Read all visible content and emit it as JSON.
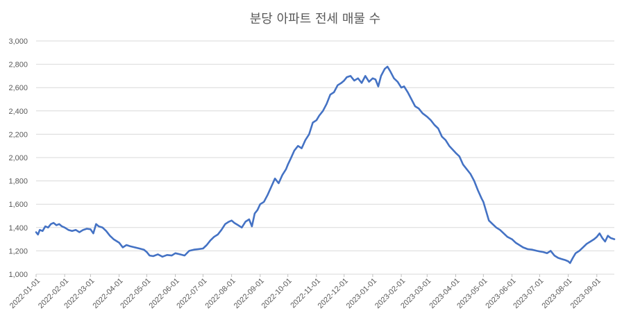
{
  "chart_data": {
    "type": "line",
    "title": "분당 아파트 전세 매물 수",
    "xlabel": "",
    "ylabel": "",
    "ylim": [
      1000,
      3000
    ],
    "yticks": [
      1000,
      1200,
      1400,
      1600,
      1800,
      2000,
      2200,
      2400,
      2600,
      2800,
      3000
    ],
    "ytick_labels": [
      "1,000",
      "1,200",
      "1,400",
      "1,600",
      "1,800",
      "2,000",
      "2,200",
      "2,400",
      "2,600",
      "2,800",
      "3,000"
    ],
    "xlim": [
      "2022-01-01",
      "2023-09-20"
    ],
    "xtick_labels": [
      "2022-01-01",
      "2022-02-01",
      "2022-03-01",
      "2022-04-01",
      "2022-05-01",
      "2022-06-01",
      "2022-07-01",
      "2022-08-01",
      "2022-09-01",
      "2022-10-01",
      "2022-11-01",
      "2022-12-01",
      "2023-01-01",
      "2023-02-01",
      "2023-03-01",
      "2023-04-01",
      "2023-05-01",
      "2023-06-01",
      "2023-07-01",
      "2023-08-01",
      "2023-09-01"
    ],
    "grid": true,
    "legend": false,
    "line_color": "#4472c4",
    "series": [
      {
        "points": [
          [
            "2022-01-01",
            1360
          ],
          [
            "2022-01-03",
            1340
          ],
          [
            "2022-01-05",
            1380
          ],
          [
            "2022-01-08",
            1370
          ],
          [
            "2022-01-11",
            1410
          ],
          [
            "2022-01-14",
            1400
          ],
          [
            "2022-01-17",
            1430
          ],
          [
            "2022-01-20",
            1440
          ],
          [
            "2022-01-23",
            1420
          ],
          [
            "2022-01-26",
            1430
          ],
          [
            "2022-01-29",
            1410
          ],
          [
            "2022-02-01",
            1400
          ],
          [
            "2022-02-05",
            1380
          ],
          [
            "2022-02-09",
            1370
          ],
          [
            "2022-02-13",
            1380
          ],
          [
            "2022-02-17",
            1360
          ],
          [
            "2022-02-21",
            1380
          ],
          [
            "2022-02-25",
            1390
          ],
          [
            "2022-03-01",
            1385
          ],
          [
            "2022-03-04",
            1350
          ],
          [
            "2022-03-07",
            1430
          ],
          [
            "2022-03-10",
            1410
          ],
          [
            "2022-03-14",
            1400
          ],
          [
            "2022-03-18",
            1370
          ],
          [
            "2022-03-22",
            1330
          ],
          [
            "2022-03-26",
            1300
          ],
          [
            "2022-04-01",
            1270
          ],
          [
            "2022-04-05",
            1230
          ],
          [
            "2022-04-09",
            1250
          ],
          [
            "2022-04-13",
            1240
          ],
          [
            "2022-04-18",
            1230
          ],
          [
            "2022-04-23",
            1220
          ],
          [
            "2022-04-28",
            1210
          ],
          [
            "2022-05-01",
            1190
          ],
          [
            "2022-05-04",
            1160
          ],
          [
            "2022-05-08",
            1155
          ],
          [
            "2022-05-13",
            1170
          ],
          [
            "2022-05-18",
            1150
          ],
          [
            "2022-05-23",
            1165
          ],
          [
            "2022-05-28",
            1160
          ],
          [
            "2022-06-01",
            1180
          ],
          [
            "2022-06-06",
            1170
          ],
          [
            "2022-06-11",
            1160
          ],
          [
            "2022-06-16",
            1200
          ],
          [
            "2022-06-21",
            1210
          ],
          [
            "2022-06-26",
            1215
          ],
          [
            "2022-07-01",
            1220
          ],
          [
            "2022-07-05",
            1250
          ],
          [
            "2022-07-09",
            1290
          ],
          [
            "2022-07-13",
            1320
          ],
          [
            "2022-07-17",
            1340
          ],
          [
            "2022-07-21",
            1380
          ],
          [
            "2022-07-25",
            1430
          ],
          [
            "2022-07-29",
            1450
          ],
          [
            "2022-08-01",
            1460
          ],
          [
            "2022-08-04",
            1440
          ],
          [
            "2022-08-08",
            1420
          ],
          [
            "2022-08-12",
            1400
          ],
          [
            "2022-08-16",
            1450
          ],
          [
            "2022-08-20",
            1470
          ],
          [
            "2022-08-23",
            1410
          ],
          [
            "2022-08-26",
            1520
          ],
          [
            "2022-08-29",
            1550
          ],
          [
            "2022-09-01",
            1600
          ],
          [
            "2022-09-05",
            1620
          ],
          [
            "2022-09-09",
            1680
          ],
          [
            "2022-09-13",
            1750
          ],
          [
            "2022-09-17",
            1820
          ],
          [
            "2022-09-21",
            1780
          ],
          [
            "2022-09-25",
            1850
          ],
          [
            "2022-09-29",
            1900
          ],
          [
            "2022-10-01",
            1940
          ],
          [
            "2022-10-04",
            1990
          ],
          [
            "2022-10-08",
            2060
          ],
          [
            "2022-10-12",
            2100
          ],
          [
            "2022-10-16",
            2080
          ],
          [
            "2022-10-20",
            2150
          ],
          [
            "2022-10-24",
            2200
          ],
          [
            "2022-10-28",
            2300
          ],
          [
            "2022-11-01",
            2320
          ],
          [
            "2022-11-04",
            2360
          ],
          [
            "2022-11-08",
            2400
          ],
          [
            "2022-11-12",
            2460
          ],
          [
            "2022-11-16",
            2540
          ],
          [
            "2022-11-20",
            2560
          ],
          [
            "2022-11-24",
            2620
          ],
          [
            "2022-11-28",
            2640
          ],
          [
            "2022-12-01",
            2660
          ],
          [
            "2022-12-04",
            2690
          ],
          [
            "2022-12-08",
            2700
          ],
          [
            "2022-12-12",
            2660
          ],
          [
            "2022-12-16",
            2680
          ],
          [
            "2022-12-20",
            2640
          ],
          [
            "2022-12-24",
            2700
          ],
          [
            "2022-12-28",
            2650
          ],
          [
            "2023-01-01",
            2680
          ],
          [
            "2023-01-04",
            2670
          ],
          [
            "2023-01-07",
            2610
          ],
          [
            "2023-01-10",
            2700
          ],
          [
            "2023-01-14",
            2760
          ],
          [
            "2023-01-17",
            2780
          ],
          [
            "2023-01-20",
            2740
          ],
          [
            "2023-01-24",
            2680
          ],
          [
            "2023-01-28",
            2650
          ],
          [
            "2023-02-01",
            2600
          ],
          [
            "2023-02-04",
            2610
          ],
          [
            "2023-02-08",
            2560
          ],
          [
            "2023-02-12",
            2500
          ],
          [
            "2023-02-16",
            2440
          ],
          [
            "2023-02-20",
            2420
          ],
          [
            "2023-02-24",
            2380
          ],
          [
            "2023-03-01",
            2350
          ],
          [
            "2023-03-05",
            2320
          ],
          [
            "2023-03-09",
            2280
          ],
          [
            "2023-03-13",
            2250
          ],
          [
            "2023-03-17",
            2180
          ],
          [
            "2023-03-21",
            2150
          ],
          [
            "2023-03-25",
            2100
          ],
          [
            "2023-04-01",
            2040
          ],
          [
            "2023-04-05",
            2010
          ],
          [
            "2023-04-09",
            1940
          ],
          [
            "2023-04-13",
            1900
          ],
          [
            "2023-04-17",
            1860
          ],
          [
            "2023-04-21",
            1800
          ],
          [
            "2023-04-25",
            1720
          ],
          [
            "2023-04-29",
            1650
          ],
          [
            "2023-05-01",
            1620
          ],
          [
            "2023-05-04",
            1540
          ],
          [
            "2023-05-07",
            1460
          ],
          [
            "2023-05-11",
            1430
          ],
          [
            "2023-05-15",
            1400
          ],
          [
            "2023-05-19",
            1380
          ],
          [
            "2023-05-23",
            1350
          ],
          [
            "2023-05-27",
            1320
          ],
          [
            "2023-06-01",
            1300
          ],
          [
            "2023-06-05",
            1270
          ],
          [
            "2023-06-09",
            1250
          ],
          [
            "2023-06-13",
            1230
          ],
          [
            "2023-06-18",
            1215
          ],
          [
            "2023-06-23",
            1210
          ],
          [
            "2023-06-28",
            1200
          ],
          [
            "2023-07-01",
            1195
          ],
          [
            "2023-07-05",
            1190
          ],
          [
            "2023-07-09",
            1180
          ],
          [
            "2023-07-13",
            1200
          ],
          [
            "2023-07-17",
            1160
          ],
          [
            "2023-07-21",
            1140
          ],
          [
            "2023-07-25",
            1130
          ],
          [
            "2023-07-29",
            1120
          ],
          [
            "2023-08-01",
            1110
          ],
          [
            "2023-08-03",
            1095
          ],
          [
            "2023-08-06",
            1140
          ],
          [
            "2023-08-09",
            1180
          ],
          [
            "2023-08-13",
            1200
          ],
          [
            "2023-08-17",
            1230
          ],
          [
            "2023-08-21",
            1260
          ],
          [
            "2023-08-25",
            1280
          ],
          [
            "2023-08-29",
            1300
          ],
          [
            "2023-09-01",
            1320
          ],
          [
            "2023-09-04",
            1350
          ],
          [
            "2023-09-07",
            1310
          ],
          [
            "2023-09-10",
            1280
          ],
          [
            "2023-09-13",
            1330
          ],
          [
            "2023-09-16",
            1310
          ],
          [
            "2023-09-20",
            1300
          ]
        ]
      }
    ]
  }
}
